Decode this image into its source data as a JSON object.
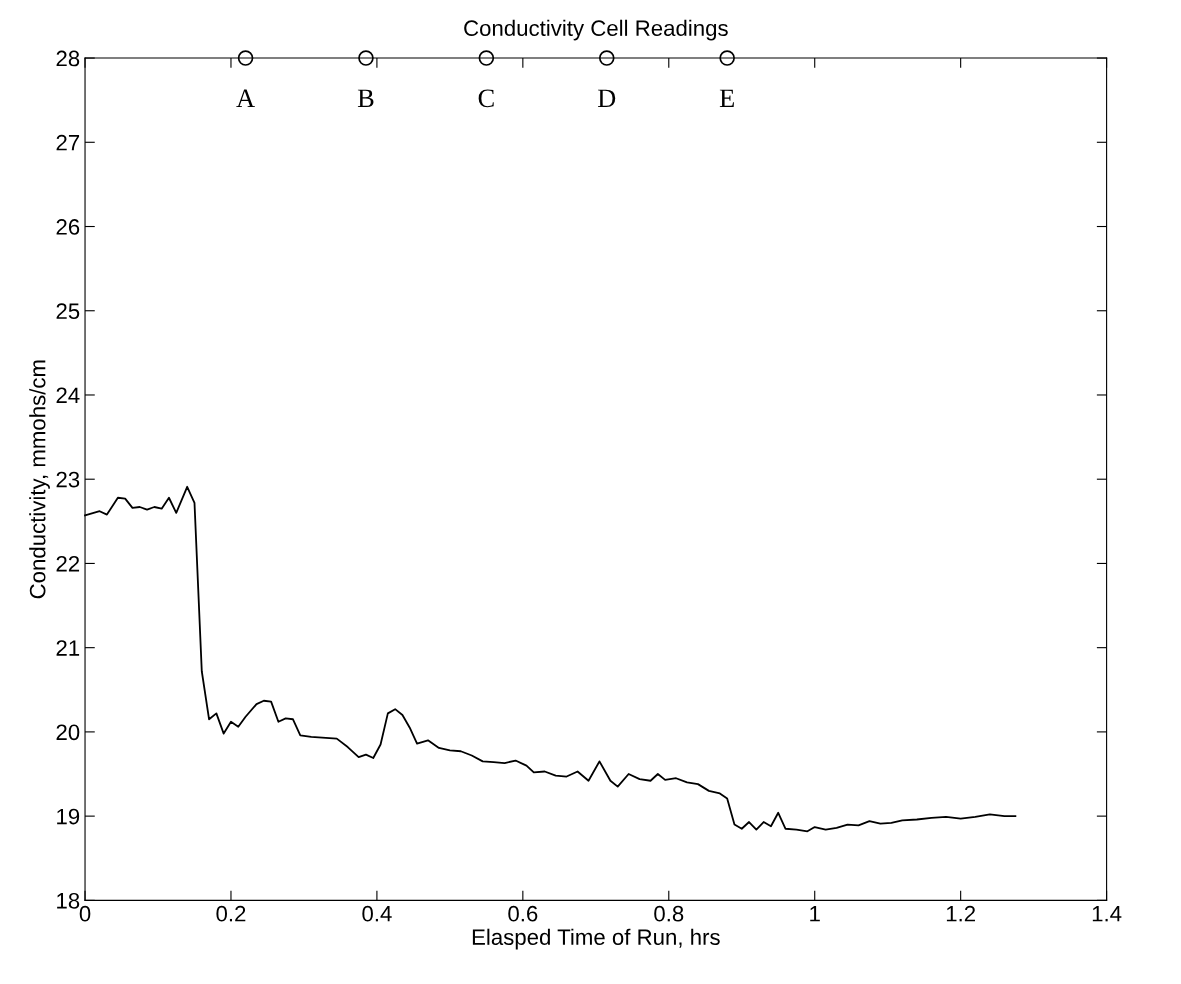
{
  "chart_data": {
    "type": "line",
    "title": "Conductivity Cell Readings",
    "xlabel": "Elasped Time of Run, hrs",
    "ylabel": "Conductivity, mmohs/cm",
    "xlim": [
      0,
      1.4
    ],
    "xticks": [
      0,
      0.2,
      0.4,
      0.6,
      0.8,
      1,
      1.2,
      1.4
    ],
    "ylim": [
      18,
      28
    ],
    "yticks": [
      18,
      19,
      20,
      21,
      22,
      23,
      24,
      25,
      26,
      27,
      28
    ],
    "grid": false,
    "legend": false,
    "series": [
      {
        "color": "#000000",
        "marker": "none",
        "line_style": "solid",
        "x": [
          0,
          0.02,
          0.03,
          0.045,
          0.055,
          0.065,
          0.075,
          0.085,
          0.095,
          0.105,
          0.115,
          0.125,
          0.14,
          0.15,
          0.16,
          0.17,
          0.18,
          0.19,
          0.2,
          0.21,
          0.22,
          0.235,
          0.245,
          0.255,
          0.265,
          0.275,
          0.285,
          0.295,
          0.31,
          0.33,
          0.345,
          0.36,
          0.375,
          0.385,
          0.395,
          0.405,
          0.415,
          0.425,
          0.435,
          0.445,
          0.455,
          0.47,
          0.485,
          0.5,
          0.515,
          0.53,
          0.545,
          0.56,
          0.575,
          0.59,
          0.605,
          0.615,
          0.63,
          0.645,
          0.66,
          0.675,
          0.69,
          0.705,
          0.72,
          0.73,
          0.745,
          0.76,
          0.775,
          0.785,
          0.795,
          0.81,
          0.825,
          0.84,
          0.855,
          0.87,
          0.88,
          0.89,
          0.9,
          0.91,
          0.92,
          0.93,
          0.94,
          0.95,
          0.96,
          0.975,
          0.99,
          1.0,
          1.015,
          1.03,
          1.045,
          1.06,
          1.075,
          1.09,
          1.105,
          1.12,
          1.14,
          1.16,
          1.18,
          1.2,
          1.22,
          1.24,
          1.26,
          1.275
        ],
        "values": [
          22.57,
          22.62,
          22.58,
          22.78,
          22.77,
          22.66,
          22.67,
          22.64,
          22.67,
          22.65,
          22.78,
          22.6,
          22.91,
          22.72,
          20.72,
          20.15,
          20.22,
          19.98,
          20.12,
          20.06,
          20.18,
          20.33,
          20.37,
          20.36,
          20.12,
          20.16,
          20.15,
          19.96,
          19.94,
          19.93,
          19.92,
          19.82,
          19.7,
          19.73,
          19.69,
          19.85,
          20.22,
          20.27,
          20.2,
          20.05,
          19.86,
          19.9,
          19.81,
          19.78,
          19.77,
          19.72,
          19.65,
          19.64,
          19.63,
          19.66,
          19.6,
          19.52,
          19.53,
          19.48,
          19.47,
          19.53,
          19.42,
          19.65,
          19.42,
          19.35,
          19.5,
          19.44,
          19.42,
          19.5,
          19.43,
          19.45,
          19.4,
          19.38,
          19.3,
          19.27,
          19.21,
          18.9,
          18.85,
          18.93,
          18.84,
          18.93,
          18.88,
          19.04,
          18.85,
          18.84,
          18.82,
          18.87,
          18.84,
          18.86,
          18.9,
          18.89,
          18.94,
          18.91,
          18.92,
          18.95,
          18.96,
          18.98,
          18.99,
          18.97,
          18.99,
          19.02,
          19.0,
          19.0
        ]
      },
      {
        "type": "scatter",
        "color": "#000000",
        "marker": "circle",
        "x": [
          0.22,
          0.385,
          0.55,
          0.715,
          0.88
        ],
        "values": [
          28,
          28,
          28,
          28,
          28
        ]
      }
    ],
    "annotations": [
      {
        "text": "A",
        "x": 0.22,
        "y": 28
      },
      {
        "text": "B",
        "x": 0.385,
        "y": 28
      },
      {
        "text": "C",
        "x": 0.55,
        "y": 28
      },
      {
        "text": "D",
        "x": 0.715,
        "y": 28
      },
      {
        "text": "E",
        "x": 0.88,
        "y": 28
      }
    ]
  }
}
